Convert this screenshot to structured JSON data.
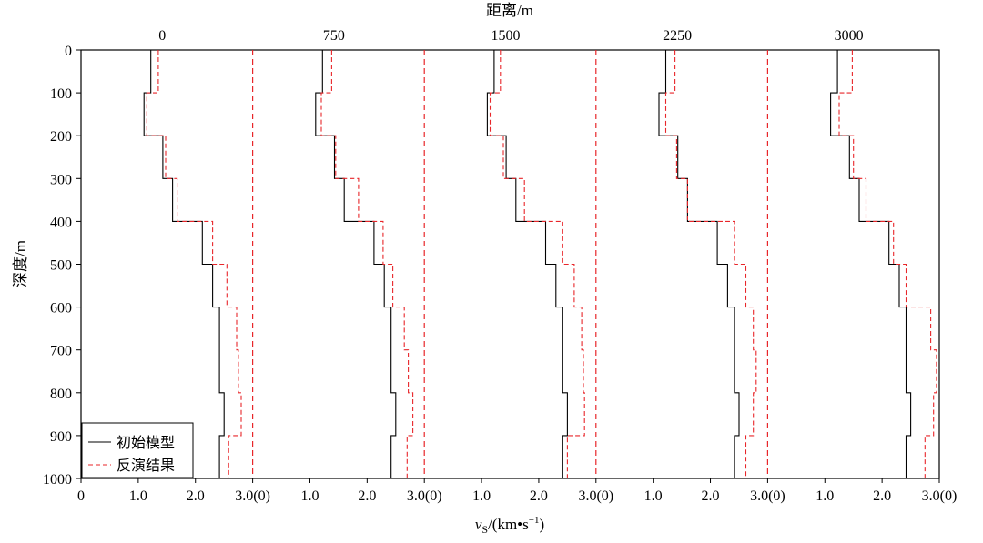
{
  "chart_data": {
    "type": "line",
    "top_title": "距离/m",
    "ylabel": "深度/m",
    "xlabel_main": "v",
    "xlabel_sub": "S",
    "xlabel_unit": "/(km•s",
    "xlabel_exp": "−1",
    "xlabel_close": ")",
    "ylim": [
      0,
      1000
    ],
    "y_inverted": true,
    "xlim_per_panel": [
      0,
      3.0
    ],
    "distances": [
      "0",
      "750",
      "1500",
      "2250",
      "3000"
    ],
    "yticks": [
      "0",
      "100",
      "200",
      "300",
      "400",
      "500",
      "600",
      "700",
      "800",
      "900",
      "1000"
    ],
    "xticks_first_panel": [
      "0",
      "1.0",
      "2.0",
      "3.0(0)"
    ],
    "xticks_panel": [
      "1.0",
      "2.0",
      "3.0(0)"
    ],
    "legend": [
      "初始模型",
      "反演结果"
    ],
    "colors": {
      "initial": "#000000",
      "inverted": "#e8262a",
      "boundary": "#e8262a"
    },
    "layer_tops": [
      0,
      100,
      200,
      300,
      400,
      500,
      600,
      700,
      800,
      900,
      1000
    ],
    "panels": [
      {
        "distance": 0,
        "initial": [
          1.22,
          1.1,
          1.43,
          1.6,
          2.12,
          2.3,
          2.42,
          2.42,
          2.5,
          2.42
        ],
        "inverted": [
          1.35,
          1.15,
          1.48,
          1.68,
          2.3,
          2.55,
          2.72,
          2.75,
          2.8,
          2.58
        ]
      },
      {
        "distance": 750,
        "initial": [
          1.22,
          1.1,
          1.43,
          1.6,
          2.12,
          2.3,
          2.42,
          2.42,
          2.5,
          2.42
        ],
        "inverted": [
          1.38,
          1.2,
          1.45,
          1.85,
          2.28,
          2.45,
          2.65,
          2.72,
          2.8,
          2.7
        ]
      },
      {
        "distance": 1500,
        "initial": [
          1.22,
          1.1,
          1.43,
          1.6,
          2.12,
          2.3,
          2.42,
          2.42,
          2.5,
          2.42
        ],
        "inverted": [
          1.33,
          1.15,
          1.38,
          1.75,
          2.42,
          2.62,
          2.75,
          2.78,
          2.8,
          2.5
        ]
      },
      {
        "distance": 2250,
        "initial": [
          1.22,
          1.1,
          1.43,
          1.6,
          2.12,
          2.3,
          2.42,
          2.42,
          2.5,
          2.42
        ],
        "inverted": [
          1.38,
          1.22,
          1.41,
          1.6,
          2.42,
          2.62,
          2.75,
          2.8,
          2.75,
          2.62
        ]
      },
      {
        "distance": 3000,
        "initial": [
          1.22,
          1.1,
          1.43,
          1.6,
          2.12,
          2.3,
          2.42,
          2.42,
          2.5,
          2.42
        ],
        "inverted": [
          1.48,
          1.25,
          1.5,
          1.72,
          2.2,
          2.42,
          2.85,
          2.95,
          2.9,
          2.75
        ]
      }
    ]
  }
}
